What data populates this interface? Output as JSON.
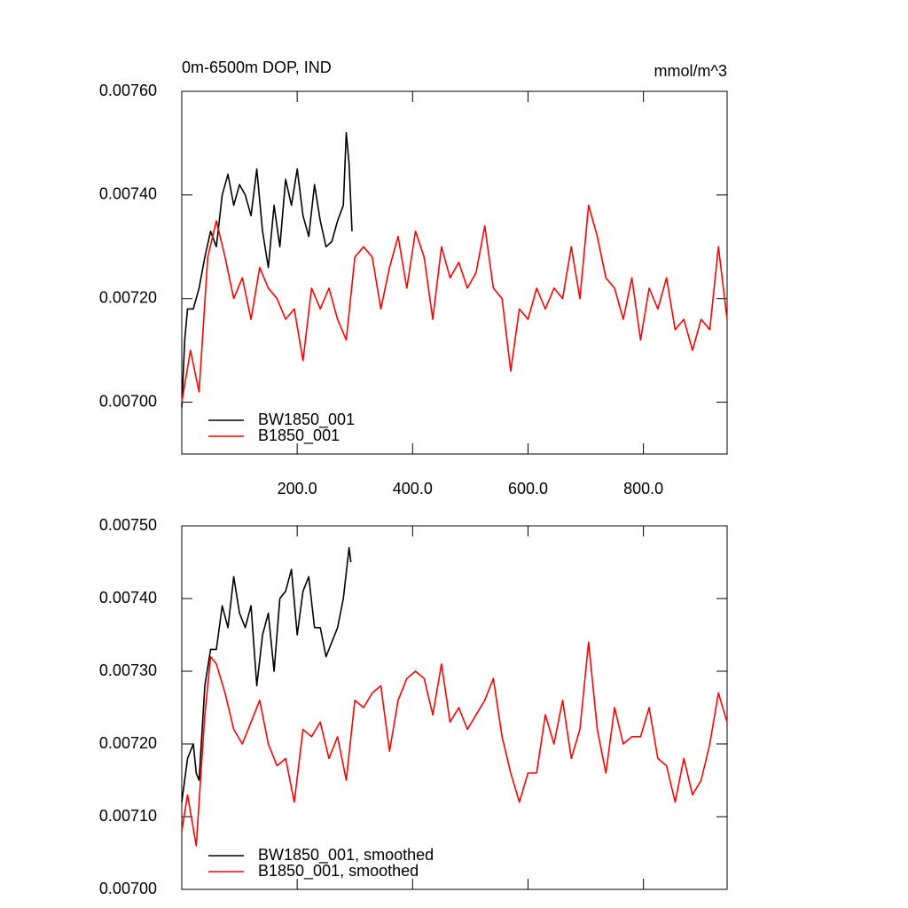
{
  "chart_data": [
    {
      "type": "line",
      "title": "0m-6500m DOP, IND",
      "units": "mmol/m^3",
      "xlim": [
        0,
        945
      ],
      "ylim": [
        0.0069,
        0.0076
      ],
      "show_xtick_labels": true,
      "xticks": [
        {
          "value": 200,
          "label": "200.0"
        },
        {
          "value": 400,
          "label": "400.0"
        },
        {
          "value": 600,
          "label": "600.0"
        },
        {
          "value": 800,
          "label": "800.0"
        }
      ],
      "yticks": [
        {
          "value": 0.007,
          "label": "0.00700"
        },
        {
          "value": 0.0072,
          "label": "0.00720"
        },
        {
          "value": 0.0074,
          "label": "0.00740"
        },
        {
          "value": 0.0076,
          "label": "0.00760"
        }
      ],
      "legend": "lower left",
      "series": [
        {
          "name": "BW1850_001",
          "color": "#000000",
          "x": [
            0,
            5,
            10,
            20,
            30,
            40,
            50,
            60,
            70,
            80,
            90,
            100,
            110,
            120,
            130,
            140,
            150,
            160,
            170,
            180,
            190,
            200,
            210,
            220,
            230,
            240,
            250,
            260,
            270,
            280,
            285,
            290,
            295
          ],
          "values": [
            0.00699,
            0.00712,
            0.00718,
            0.00718,
            0.00722,
            0.00728,
            0.00733,
            0.0073,
            0.0074,
            0.00744,
            0.00738,
            0.00742,
            0.0074,
            0.00736,
            0.00745,
            0.00733,
            0.00726,
            0.00738,
            0.0073,
            0.00743,
            0.00738,
            0.00745,
            0.00736,
            0.00732,
            0.00742,
            0.00735,
            0.0073,
            0.00731,
            0.00735,
            0.00738,
            0.00752,
            0.00746,
            0.00733
          ]
        },
        {
          "name": "B1850_001",
          "color": "#ff0000",
          "x": [
            0,
            15,
            30,
            45,
            60,
            75,
            90,
            105,
            120,
            135,
            150,
            165,
            180,
            195,
            210,
            225,
            240,
            255,
            270,
            285,
            300,
            315,
            330,
            345,
            360,
            375,
            390,
            405,
            420,
            435,
            450,
            465,
            480,
            495,
            510,
            525,
            540,
            555,
            570,
            585,
            600,
            615,
            630,
            645,
            660,
            675,
            690,
            705,
            720,
            735,
            750,
            765,
            780,
            795,
            810,
            825,
            840,
            855,
            870,
            885,
            900,
            915,
            930,
            945
          ],
          "values": [
            0.007,
            0.0071,
            0.00702,
            0.00728,
            0.00735,
            0.00728,
            0.0072,
            0.00724,
            0.00716,
            0.00726,
            0.00722,
            0.0072,
            0.00716,
            0.00718,
            0.00708,
            0.00722,
            0.00718,
            0.00722,
            0.00716,
            0.00712,
            0.00728,
            0.0073,
            0.00728,
            0.00718,
            0.00726,
            0.00732,
            0.00722,
            0.00733,
            0.00728,
            0.00716,
            0.0073,
            0.00724,
            0.00727,
            0.00722,
            0.00725,
            0.00734,
            0.00722,
            0.0072,
            0.00706,
            0.00718,
            0.00716,
            0.00722,
            0.00718,
            0.00722,
            0.0072,
            0.0073,
            0.0072,
            0.00738,
            0.00732,
            0.00724,
            0.00722,
            0.00716,
            0.00724,
            0.00712,
            0.00722,
            0.00718,
            0.00724,
            0.00714,
            0.00716,
            0.0071,
            0.00716,
            0.00714,
            0.0073,
            0.00716
          ]
        }
      ]
    },
    {
      "type": "line",
      "xlim": [
        0,
        945
      ],
      "ylim": [
        0.007,
        0.0075
      ],
      "show_xtick_labels": false,
      "xticks": [
        200,
        400,
        600,
        800
      ],
      "yticks": [
        {
          "value": 0.007,
          "label": "0.00700"
        },
        {
          "value": 0.0071,
          "label": "0.00710"
        },
        {
          "value": 0.0072,
          "label": "0.00720"
        },
        {
          "value": 0.0073,
          "label": "0.00730"
        },
        {
          "value": 0.0074,
          "label": "0.00740"
        },
        {
          "value": 0.0075,
          "label": "0.00750"
        }
      ],
      "legend": "lower left",
      "series": [
        {
          "name": "BW1850_001, smoothed",
          "color": "#000000",
          "x": [
            0,
            10,
            20,
            25,
            30,
            40,
            50,
            60,
            70,
            80,
            90,
            100,
            110,
            120,
            130,
            140,
            150,
            160,
            170,
            180,
            190,
            200,
            210,
            220,
            230,
            240,
            250,
            260,
            270,
            280,
            290,
            293
          ],
          "values": [
            0.00712,
            0.00718,
            0.0072,
            0.00716,
            0.00715,
            0.00728,
            0.00733,
            0.00733,
            0.00739,
            0.00736,
            0.00743,
            0.00738,
            0.00736,
            0.00739,
            0.00728,
            0.00735,
            0.00738,
            0.0073,
            0.0074,
            0.00741,
            0.00744,
            0.00735,
            0.00741,
            0.00743,
            0.00736,
            0.00736,
            0.00732,
            0.00734,
            0.00736,
            0.0074,
            0.00747,
            0.00745
          ]
        },
        {
          "name": "B1850_001, smoothed",
          "color": "#ff0000",
          "x": [
            0,
            10,
            25,
            40,
            50,
            60,
            75,
            90,
            105,
            120,
            135,
            150,
            165,
            180,
            195,
            210,
            225,
            240,
            255,
            270,
            285,
            300,
            315,
            330,
            345,
            360,
            375,
            390,
            405,
            420,
            435,
            450,
            465,
            480,
            495,
            510,
            525,
            540,
            555,
            570,
            585,
            600,
            615,
            630,
            645,
            660,
            675,
            690,
            705,
            720,
            735,
            750,
            765,
            780,
            795,
            810,
            825,
            840,
            855,
            870,
            885,
            900,
            915,
            930,
            945
          ],
          "values": [
            0.00708,
            0.00713,
            0.00706,
            0.00724,
            0.00732,
            0.00731,
            0.00727,
            0.00722,
            0.0072,
            0.00723,
            0.00726,
            0.0072,
            0.00717,
            0.00718,
            0.00712,
            0.00722,
            0.00721,
            0.00723,
            0.00718,
            0.00721,
            0.00715,
            0.00726,
            0.00725,
            0.00727,
            0.00728,
            0.00719,
            0.00726,
            0.00729,
            0.0073,
            0.00729,
            0.00724,
            0.00731,
            0.00723,
            0.00725,
            0.00722,
            0.00724,
            0.00726,
            0.00729,
            0.00721,
            0.00716,
            0.00712,
            0.00716,
            0.00716,
            0.00724,
            0.0072,
            0.00726,
            0.00718,
            0.00722,
            0.00734,
            0.00722,
            0.00716,
            0.00725,
            0.0072,
            0.00721,
            0.00721,
            0.00725,
            0.00718,
            0.00717,
            0.00712,
            0.00718,
            0.00713,
            0.00715,
            0.0072,
            0.00727,
            0.00723
          ]
        }
      ]
    }
  ]
}
